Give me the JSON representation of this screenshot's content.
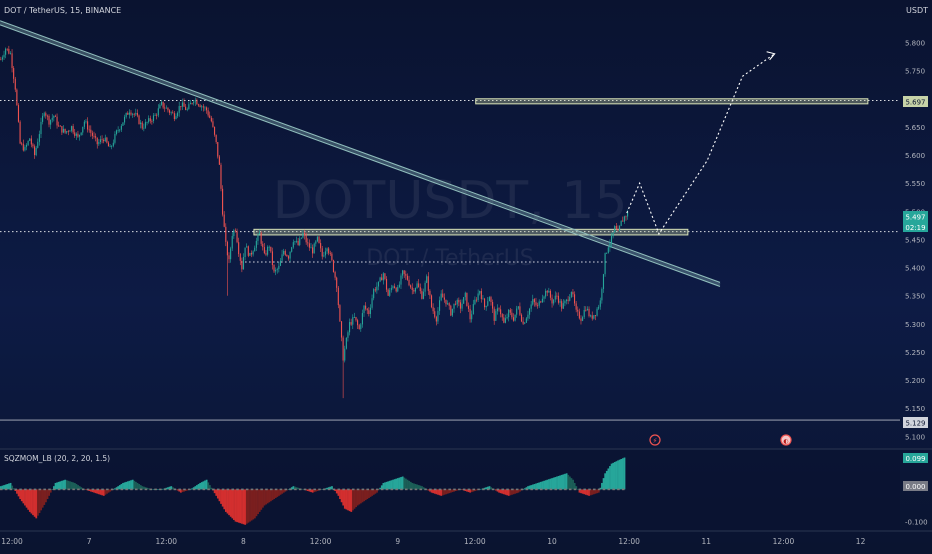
{
  "header": {
    "symbol_line": "DOT / TetherUS, 15, BINANCE",
    "currency": "USDT"
  },
  "watermark": {
    "ticker": "DOTUSDT, 15",
    "name": "DOT / TetherUS"
  },
  "indicator": {
    "label": "SQZMOM_LB (20, 2, 20, 1.5)",
    "value_top": "0.099",
    "value_mid": "0.000"
  },
  "badges": {
    "last_price": "5.497",
    "countdown": "02:19",
    "level_high": "5.697",
    "level_low": "5.129"
  },
  "colors": {
    "background": "#0b1530",
    "up": "#26a69a",
    "down": "#ef5350",
    "trendline": "#8fbcbb",
    "mom_up_strong": "#26a69a",
    "mom_up_weak": "#1b5e57",
    "mom_down_strong": "#d32f2f",
    "mom_down_weak": "#7a1f1f",
    "zero_dot": "#777777"
  },
  "chart_data": {
    "type": "candlestick",
    "symbol": "DOTUSDT",
    "timeframe": "15",
    "exchange": "BINANCE",
    "ylim": [
      5.09,
      5.84
    ],
    "y_ticks": [
      "5.800",
      "5.750",
      "5.700",
      "5.650",
      "5.600",
      "5.550",
      "5.500",
      "5.450",
      "5.400",
      "5.350",
      "5.300",
      "5.250",
      "5.200",
      "5.150",
      "5.100"
    ],
    "x_ticks": [
      "12:00",
      "7",
      "12:00",
      "8",
      "12:00",
      "9",
      "12:00",
      "10",
      "12:00",
      "11",
      "12:00",
      "12"
    ],
    "x_tick_slots": [
      0,
      48,
      96,
      144,
      192,
      240,
      288,
      336,
      384,
      432,
      480,
      528
    ],
    "slot_count": 560,
    "close_path": [
      [
        0,
        5.77
      ],
      [
        3,
        5.79
      ],
      [
        6,
        5.78
      ],
      [
        9,
        5.72
      ],
      [
        12,
        5.62
      ],
      [
        15,
        5.61
      ],
      [
        18,
        5.63
      ],
      [
        21,
        5.6
      ],
      [
        24,
        5.64
      ],
      [
        27,
        5.68
      ],
      [
        30,
        5.66
      ],
      [
        33,
        5.67
      ],
      [
        36,
        5.65
      ],
      [
        40,
        5.64
      ],
      [
        44,
        5.65
      ],
      [
        48,
        5.63
      ],
      [
        52,
        5.66
      ],
      [
        56,
        5.64
      ],
      [
        60,
        5.62
      ],
      [
        64,
        5.63
      ],
      [
        68,
        5.61
      ],
      [
        72,
        5.64
      ],
      [
        76,
        5.66
      ],
      [
        80,
        5.68
      ],
      [
        84,
        5.67
      ],
      [
        88,
        5.65
      ],
      [
        92,
        5.66
      ],
      [
        96,
        5.67
      ],
      [
        100,
        5.69
      ],
      [
        104,
        5.68
      ],
      [
        108,
        5.67
      ],
      [
        112,
        5.69
      ],
      [
        116,
        5.68
      ],
      [
        120,
        5.7
      ],
      [
        124,
        5.69
      ],
      [
        128,
        5.68
      ],
      [
        131,
        5.66
      ],
      [
        134,
        5.62
      ],
      [
        136,
        5.58
      ],
      [
        138,
        5.5
      ],
      [
        140,
        5.44
      ],
      [
        142,
        5.41
      ],
      [
        144,
        5.46
      ],
      [
        146,
        5.47
      ],
      [
        148,
        5.43
      ],
      [
        150,
        5.4
      ],
      [
        152,
        5.44
      ],
      [
        155,
        5.42
      ],
      [
        158,
        5.44
      ],
      [
        161,
        5.46
      ],
      [
        164,
        5.42
      ],
      [
        167,
        5.44
      ],
      [
        170,
        5.39
      ],
      [
        173,
        5.4
      ],
      [
        176,
        5.43
      ],
      [
        179,
        5.42
      ],
      [
        182,
        5.45
      ],
      [
        185,
        5.44
      ],
      [
        188,
        5.46
      ],
      [
        191,
        5.44
      ],
      [
        194,
        5.43
      ],
      [
        197,
        5.45
      ],
      [
        200,
        5.42
      ],
      [
        203,
        5.44
      ],
      [
        206,
        5.41
      ],
      [
        209,
        5.37
      ],
      [
        211,
        5.3
      ],
      [
        213,
        5.24
      ],
      [
        215,
        5.27
      ],
      [
        217,
        5.3
      ],
      [
        220,
        5.31
      ],
      [
        223,
        5.29
      ],
      [
        226,
        5.33
      ],
      [
        229,
        5.32
      ],
      [
        232,
        5.36
      ],
      [
        235,
        5.37
      ],
      [
        238,
        5.39
      ],
      [
        241,
        5.35
      ],
      [
        244,
        5.37
      ],
      [
        247,
        5.36
      ],
      [
        250,
        5.39
      ],
      [
        253,
        5.38
      ],
      [
        256,
        5.36
      ],
      [
        259,
        5.37
      ],
      [
        262,
        5.35
      ],
      [
        265,
        5.38
      ],
      [
        268,
        5.33
      ],
      [
        271,
        5.31
      ],
      [
        274,
        5.35
      ],
      [
        277,
        5.34
      ],
      [
        280,
        5.32
      ],
      [
        283,
        5.34
      ],
      [
        286,
        5.33
      ],
      [
        289,
        5.35
      ],
      [
        292,
        5.31
      ],
      [
        295,
        5.34
      ],
      [
        298,
        5.36
      ],
      [
        301,
        5.33
      ],
      [
        304,
        5.35
      ],
      [
        307,
        5.31
      ],
      [
        310,
        5.33
      ],
      [
        313,
        5.3
      ],
      [
        316,
        5.32
      ],
      [
        319,
        5.31
      ],
      [
        322,
        5.33
      ],
      [
        325,
        5.3
      ],
      [
        328,
        5.32
      ],
      [
        331,
        5.34
      ],
      [
        334,
        5.33
      ],
      [
        337,
        5.35
      ],
      [
        340,
        5.36
      ],
      [
        343,
        5.34
      ],
      [
        346,
        5.35
      ],
      [
        349,
        5.33
      ],
      [
        352,
        5.34
      ],
      [
        355,
        5.36
      ],
      [
        358,
        5.32
      ],
      [
        361,
        5.31
      ],
      [
        364,
        5.33
      ],
      [
        367,
        5.31
      ],
      [
        370,
        5.32
      ],
      [
        373,
        5.34
      ],
      [
        376,
        5.42
      ],
      [
        378,
        5.44
      ],
      [
        380,
        5.45
      ],
      [
        382,
        5.47
      ],
      [
        384,
        5.46
      ],
      [
        386,
        5.48
      ],
      [
        388,
        5.49
      ],
      [
        390,
        5.497
      ]
    ],
    "projection": [
      [
        390,
        5.497
      ],
      [
        398,
        5.55
      ],
      [
        410,
        5.46
      ],
      [
        440,
        5.59
      ],
      [
        462,
        5.74
      ],
      [
        482,
        5.78
      ]
    ],
    "horizontal_levels": [
      5.697,
      5.464,
      5.129
    ],
    "support_level": 5.41,
    "last_price": 5.497,
    "trendline": [
      [
        0,
        5.835
      ],
      [
        448,
        5.37
      ]
    ],
    "zones": [
      {
        "from_slot": 296,
        "to_slot": 540,
        "low": 5.691,
        "high": 5.7
      },
      {
        "from_slot": 158,
        "to_slot": 428,
        "low": 5.458,
        "high": 5.468
      }
    ],
    "momentum": {
      "zero": 0.0,
      "ylim": [
        -0.12,
        0.11
      ],
      "y_ticks": [
        "-0.100"
      ],
      "values": [
        [
          0,
          0.01
        ],
        [
          6,
          0.02
        ],
        [
          12,
          -0.03
        ],
        [
          18,
          -0.07
        ],
        [
          22,
          -0.09
        ],
        [
          28,
          -0.04
        ],
        [
          34,
          0.02
        ],
        [
          40,
          0.03
        ],
        [
          46,
          0.02
        ],
        [
          52,
          0.0
        ],
        [
          58,
          -0.01
        ],
        [
          64,
          -0.02
        ],
        [
          70,
          0.0
        ],
        [
          76,
          0.02
        ],
        [
          82,
          0.03
        ],
        [
          88,
          0.01
        ],
        [
          94,
          0.0
        ],
        [
          100,
          0.0
        ],
        [
          106,
          0.01
        ],
        [
          112,
          -0.01
        ],
        [
          118,
          0.0
        ],
        [
          124,
          0.02
        ],
        [
          128,
          0.03
        ],
        [
          134,
          -0.02
        ],
        [
          140,
          -0.07
        ],
        [
          146,
          -0.1
        ],
        [
          152,
          -0.11
        ],
        [
          158,
          -0.09
        ],
        [
          164,
          -0.05
        ],
        [
          170,
          -0.03
        ],
        [
          176,
          -0.01
        ],
        [
          182,
          0.01
        ],
        [
          188,
          0.0
        ],
        [
          194,
          -0.01
        ],
        [
          200,
          0.0
        ],
        [
          206,
          0.01
        ],
        [
          210,
          -0.02
        ],
        [
          214,
          -0.06
        ],
        [
          218,
          -0.07
        ],
        [
          222,
          -0.05
        ],
        [
          228,
          -0.03
        ],
        [
          234,
          -0.01
        ],
        [
          238,
          0.02
        ],
        [
          244,
          0.03
        ],
        [
          250,
          0.04
        ],
        [
          256,
          0.02
        ],
        [
          262,
          0.01
        ],
        [
          268,
          -0.01
        ],
        [
          274,
          -0.02
        ],
        [
          280,
          -0.01
        ],
        [
          286,
          0.0
        ],
        [
          292,
          -0.01
        ],
        [
          298,
          0.0
        ],
        [
          304,
          0.01
        ],
        [
          310,
          -0.01
        ],
        [
          316,
          -0.02
        ],
        [
          322,
          -0.01
        ],
        [
          328,
          0.01
        ],
        [
          334,
          0.02
        ],
        [
          340,
          0.03
        ],
        [
          346,
          0.04
        ],
        [
          352,
          0.05
        ],
        [
          356,
          0.03
        ],
        [
          360,
          -0.01
        ],
        [
          366,
          -0.02
        ],
        [
          372,
          -0.01
        ],
        [
          376,
          0.05
        ],
        [
          380,
          0.08
        ],
        [
          384,
          0.09
        ],
        [
          388,
          0.099
        ]
      ]
    }
  }
}
